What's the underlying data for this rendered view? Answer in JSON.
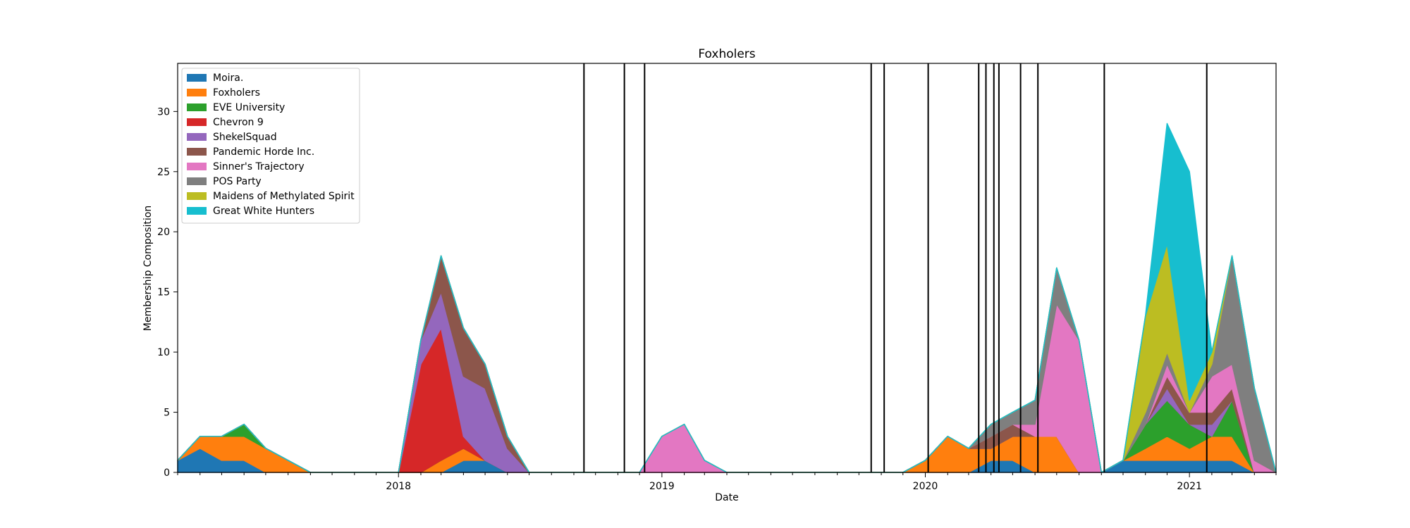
{
  "chart_data": {
    "type": "area",
    "stacked": true,
    "title": "Foxholers",
    "xlabel": "Date",
    "ylabel": "Membership Composition",
    "x_range": [
      "2017-03",
      "2021-05"
    ],
    "ylim": [
      0,
      34
    ],
    "y_ticks": [
      0,
      5,
      10,
      15,
      20,
      25,
      30
    ],
    "x_ticks": [
      {
        "date": "2018-01",
        "label": "2018"
      },
      {
        "date": "2019-01",
        "label": "2019"
      },
      {
        "date": "2020-01",
        "label": "2020"
      },
      {
        "date": "2021-01",
        "label": "2021"
      }
    ],
    "grid": false,
    "legend_position": "upper-left",
    "event_lines": [
      "2018-09-15",
      "2018-11-10",
      "2018-12-08",
      "2019-10-18",
      "2019-11-05",
      "2020-01-05",
      "2020-03-15",
      "2020-03-25",
      "2020-04-05",
      "2020-04-12",
      "2020-05-12",
      "2020-06-05",
      "2020-09-05",
      "2021-01-25"
    ],
    "x": [
      "2017-03-01",
      "2017-04-01",
      "2017-05-01",
      "2017-06-01",
      "2017-07-01",
      "2017-08-01",
      "2017-09-01",
      "2017-10-01",
      "2017-11-01",
      "2017-12-01",
      "2018-01-01",
      "2018-02-01",
      "2018-03-01",
      "2018-04-01",
      "2018-05-01",
      "2018-06-01",
      "2018-07-01",
      "2018-08-01",
      "2018-09-01",
      "2018-10-01",
      "2018-11-01",
      "2018-12-01",
      "2019-01-01",
      "2019-02-01",
      "2019-03-01",
      "2019-04-01",
      "2019-05-01",
      "2019-06-01",
      "2019-07-01",
      "2019-08-01",
      "2019-09-01",
      "2019-10-01",
      "2019-11-01",
      "2019-12-01",
      "2020-01-01",
      "2020-02-01",
      "2020-03-01",
      "2020-04-01",
      "2020-05-01",
      "2020-06-01",
      "2020-07-01",
      "2020-08-01",
      "2020-09-01",
      "2020-10-01",
      "2020-11-01",
      "2020-12-01",
      "2021-01-01",
      "2021-02-01",
      "2021-03-01",
      "2021-04-01",
      "2021-05-01"
    ],
    "series": [
      {
        "name": "Moira.",
        "color": "#1f77b4",
        "values": [
          1,
          2,
          1,
          1,
          0,
          0,
          0,
          0,
          0,
          0,
          0,
          0,
          0,
          1,
          1,
          0,
          0,
          0,
          0,
          0,
          0,
          0,
          0,
          0,
          0,
          0,
          0,
          0,
          0,
          0,
          0,
          0,
          0,
          0,
          0,
          0,
          0,
          1,
          1,
          0,
          0,
          0,
          0,
          1,
          1,
          1,
          1,
          1,
          1,
          0,
          0
        ]
      },
      {
        "name": "Foxholers",
        "color": "#ff7f0e",
        "values": [
          0,
          1,
          2,
          2,
          2,
          1,
          0,
          0,
          0,
          0,
          0,
          0,
          1,
          1,
          0,
          0,
          0,
          0,
          0,
          0,
          0,
          0,
          0,
          0,
          0,
          0,
          0,
          0,
          0,
          0,
          0,
          0,
          0,
          0,
          1,
          3,
          2,
          1,
          2,
          3,
          3,
          0,
          0,
          0,
          1,
          2,
          1,
          2,
          2,
          0,
          0
        ]
      },
      {
        "name": "EVE University",
        "color": "#2ca02c",
        "values": [
          0,
          0,
          0,
          1,
          0,
          0,
          0,
          0,
          0,
          0,
          0,
          0,
          0,
          0,
          0,
          0,
          0,
          0,
          0,
          0,
          0,
          0,
          0,
          0,
          0,
          0,
          0,
          0,
          0,
          0,
          0,
          0,
          0,
          0,
          0,
          0,
          0,
          0,
          0,
          0,
          0,
          0,
          0,
          0,
          2,
          3,
          2,
          0,
          3,
          0,
          0
        ]
      },
      {
        "name": "Chevron 9",
        "color": "#d62728",
        "values": [
          0,
          0,
          0,
          0,
          0,
          0,
          0,
          0,
          0,
          0,
          0,
          9,
          11,
          1,
          0,
          0,
          0,
          0,
          0,
          0,
          0,
          0,
          0,
          0,
          0,
          0,
          0,
          0,
          0,
          0,
          0,
          0,
          0,
          0,
          0,
          0,
          0,
          0,
          0,
          0,
          0,
          0,
          0,
          0,
          0,
          0,
          0,
          0,
          0,
          0,
          0
        ]
      },
      {
        "name": "ShekelSquad",
        "color": "#9467bd",
        "values": [
          0,
          0,
          0,
          0,
          0,
          0,
          0,
          0,
          0,
          0,
          0,
          2,
          3,
          5,
          6,
          2,
          0,
          0,
          0,
          0,
          0,
          0,
          0,
          0,
          0,
          0,
          0,
          0,
          0,
          0,
          0,
          0,
          0,
          0,
          0,
          0,
          0,
          0,
          0,
          0,
          0,
          0,
          0,
          0,
          0,
          1,
          0,
          1,
          0,
          0,
          0
        ]
      },
      {
        "name": "Pandemic Horde Inc.",
        "color": "#8c564b",
        "values": [
          0,
          0,
          0,
          0,
          0,
          0,
          0,
          0,
          0,
          0,
          0,
          0,
          3,
          4,
          2,
          1,
          0,
          0,
          0,
          0,
          0,
          0,
          0,
          0,
          0,
          0,
          0,
          0,
          0,
          0,
          0,
          0,
          0,
          0,
          0,
          0,
          0,
          1,
          1,
          0,
          0,
          0,
          0,
          0,
          0,
          1,
          1,
          1,
          1,
          0,
          0
        ]
      },
      {
        "name": "Sinner's Trajectory",
        "color": "#e377c2",
        "values": [
          0,
          0,
          0,
          0,
          0,
          0,
          0,
          0,
          0,
          0,
          0,
          0,
          0,
          0,
          0,
          0,
          0,
          0,
          0,
          0,
          0,
          0,
          3,
          4,
          1,
          0,
          0,
          0,
          0,
          0,
          0,
          0,
          0,
          0,
          0,
          0,
          0,
          0,
          0,
          1,
          11,
          11,
          0,
          0,
          0,
          1,
          0,
          3,
          2,
          1,
          0
        ]
      },
      {
        "name": "POS Party",
        "color": "#7f7f7f",
        "values": [
          0,
          0,
          0,
          0,
          0,
          0,
          0,
          0,
          0,
          0,
          0,
          0,
          0,
          0,
          0,
          0,
          0,
          0,
          0,
          0,
          0,
          0,
          0,
          0,
          0,
          0,
          0,
          0,
          0,
          0,
          0,
          0,
          0,
          0,
          0,
          0,
          0,
          1,
          1,
          2,
          3,
          0,
          0,
          0,
          1,
          1,
          0,
          1,
          9,
          6,
          0
        ]
      },
      {
        "name": "Maidens of Methylated Spirit",
        "color": "#bcbd22",
        "values": [
          0,
          0,
          0,
          0,
          0,
          0,
          0,
          0,
          0,
          0,
          0,
          0,
          0,
          0,
          0,
          0,
          0,
          0,
          0,
          0,
          0,
          0,
          0,
          0,
          0,
          0,
          0,
          0,
          0,
          0,
          0,
          0,
          0,
          0,
          0,
          0,
          0,
          0,
          0,
          0,
          0,
          0,
          0,
          0,
          8,
          9,
          1,
          1,
          0,
          0,
          0
        ]
      },
      {
        "name": "Great White Hunters",
        "color": "#17becf",
        "values": [
          0,
          0,
          0,
          0,
          0,
          0,
          0,
          0,
          0,
          0,
          0,
          0,
          0,
          0,
          0,
          0,
          0,
          0,
          0,
          0,
          0,
          0,
          0,
          0,
          0,
          0,
          0,
          0,
          0,
          0,
          0,
          0,
          0,
          0,
          0,
          0,
          0,
          0,
          0,
          0,
          0,
          0,
          0,
          0,
          0,
          10,
          19,
          0,
          0,
          0,
          0
        ]
      }
    ]
  }
}
